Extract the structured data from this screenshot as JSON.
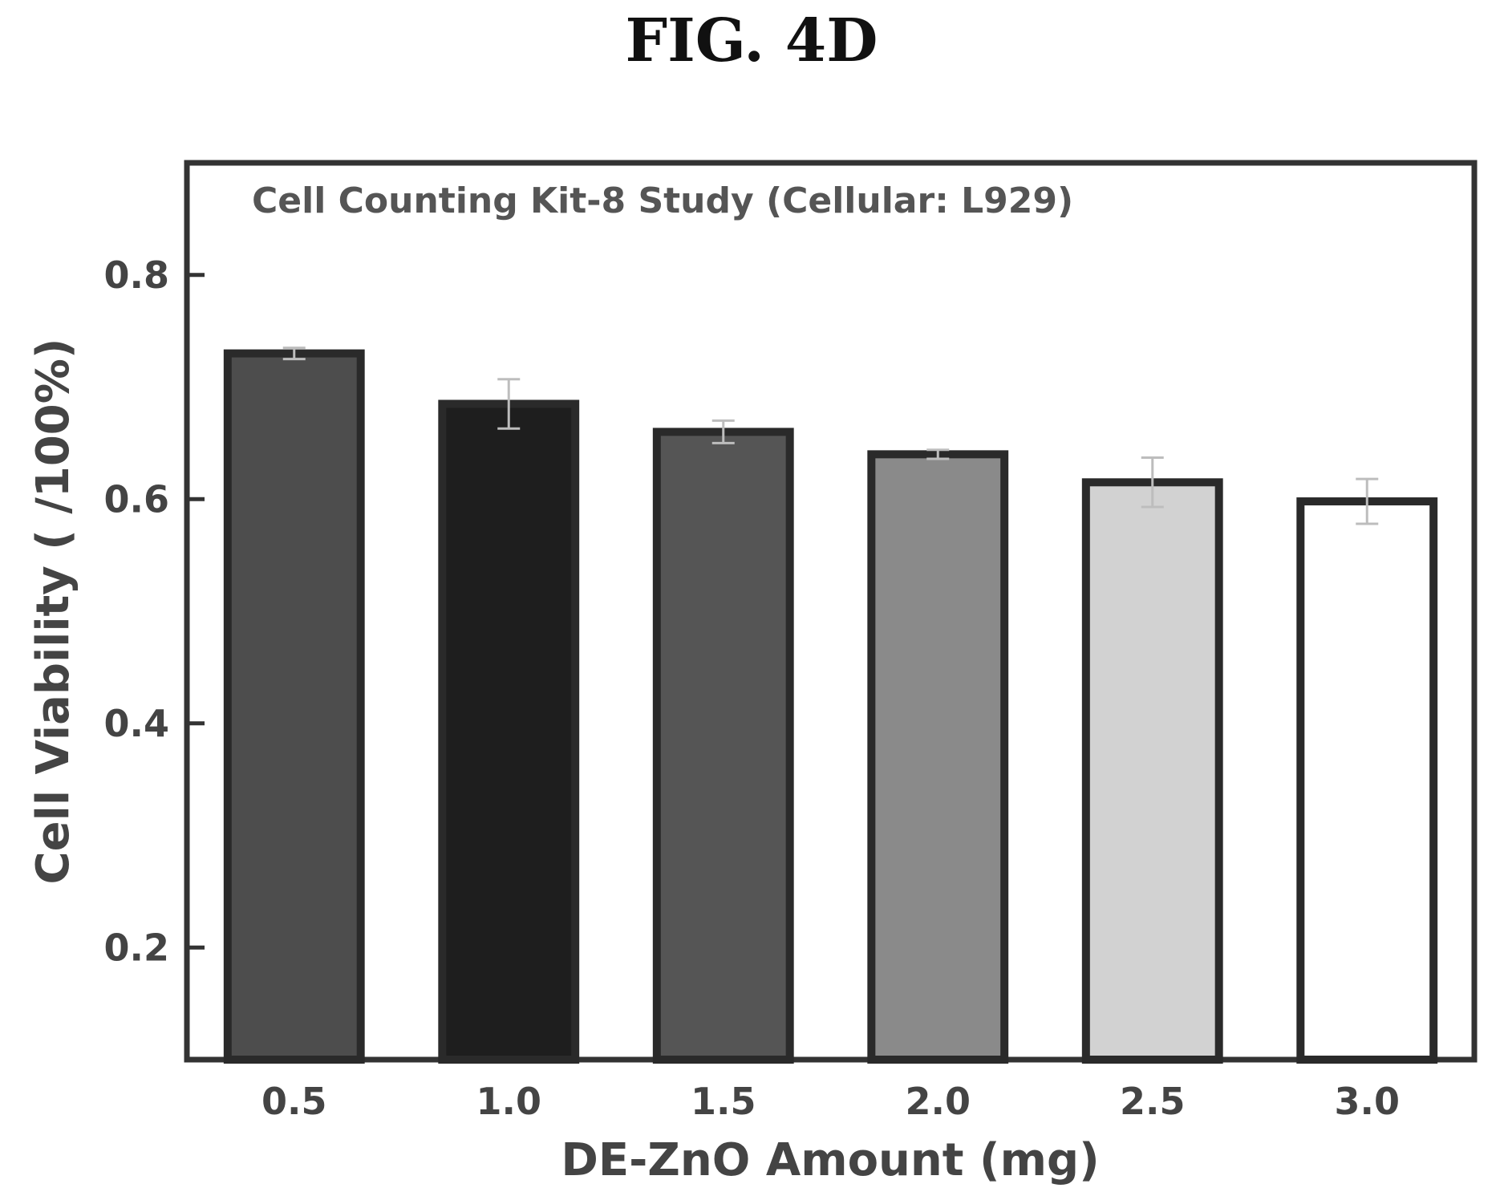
{
  "figure_label": "FIG. 4D",
  "chart_data": {
    "type": "bar",
    "title": "Cell Counting Kit-8 Study (Cellular: L929)",
    "xlabel": "DE-ZnO Amount (mg)",
    "ylabel": "Cell Viability ( /100%)",
    "categories": [
      "0.5",
      "1.0",
      "1.5",
      "2.0",
      "2.5",
      "3.0"
    ],
    "values": [
      0.73,
      0.685,
      0.66,
      0.64,
      0.615,
      0.598
    ],
    "error": [
      0.005,
      0.022,
      0.01,
      0.004,
      0.022,
      0.02
    ],
    "bar_colors": [
      "#4d4d4d",
      "#1e1e1e",
      "#555555",
      "#8a8a8a",
      "#d2d2d2",
      "#ffffff"
    ],
    "ylim": [
      0.1,
      0.9
    ],
    "yticks": [
      0.2,
      0.4,
      0.6,
      0.8
    ],
    "ytick_labels": [
      "0.2",
      "0.4",
      "0.6",
      "0.8"
    ],
    "grid": false,
    "legend": "none"
  }
}
